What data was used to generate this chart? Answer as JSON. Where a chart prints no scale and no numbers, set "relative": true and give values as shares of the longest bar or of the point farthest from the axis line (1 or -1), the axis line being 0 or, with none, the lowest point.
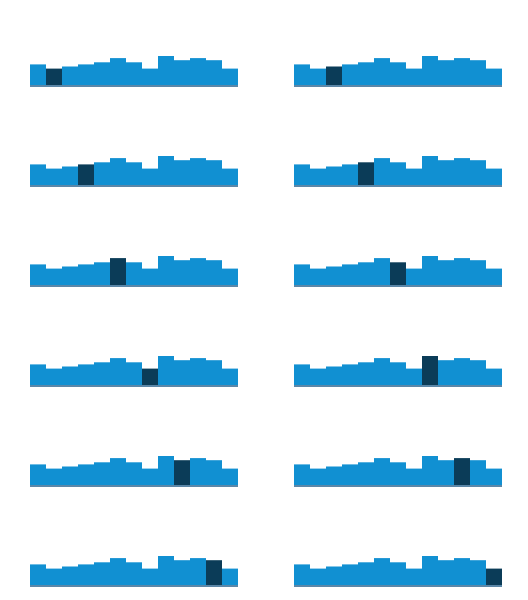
{
  "chart_data": [
    {
      "type": "bar",
      "relative": true,
      "categories": [
        null,
        null,
        null,
        null,
        null,
        null,
        null,
        null,
        null,
        null,
        null,
        null,
        null
      ],
      "values": [
        0.72,
        0.58,
        0.65,
        0.72,
        0.79,
        0.93,
        0.79,
        0.58,
        1,
        0.86,
        0.93,
        0.86,
        0.58
      ],
      "colors": [
        "#1190d2",
        "#0b3c58",
        "#1190d2",
        "#1190d2",
        "#1190d2",
        "#1190d2",
        "#1190d2",
        "#1190d2",
        "#1190d2",
        "#1190d2",
        "#1190d2",
        "#1190d2",
        "#1190d2"
      ]
    },
    {
      "type": "bar",
      "relative": true,
      "categories": [
        null,
        null,
        null,
        null,
        null,
        null,
        null,
        null,
        null,
        null,
        null,
        null,
        null
      ],
      "values": [
        0.72,
        0.58,
        0.65,
        0.72,
        0.79,
        0.93,
        0.79,
        0.58,
        1,
        0.86,
        0.93,
        0.86,
        0.58
      ],
      "colors": [
        "#1190d2",
        "#1190d2",
        "#0b3c58",
        "#1190d2",
        "#1190d2",
        "#1190d2",
        "#1190d2",
        "#1190d2",
        "#1190d2",
        "#1190d2",
        "#1190d2",
        "#1190d2",
        "#1190d2"
      ]
    },
    {
      "type": "bar",
      "relative": true,
      "categories": [
        null,
        null,
        null,
        null,
        null,
        null,
        null,
        null,
        null,
        null,
        null,
        null,
        null
      ],
      "values": [
        0.72,
        0.58,
        0.65,
        0.72,
        0.79,
        0.93,
        0.79,
        0.58,
        1,
        0.86,
        0.93,
        0.86,
        0.58
      ],
      "colors": [
        "#1190d2",
        "#1190d2",
        "#1190d2",
        "#0b3c58",
        "#1190d2",
        "#1190d2",
        "#1190d2",
        "#1190d2",
        "#1190d2",
        "#1190d2",
        "#1190d2",
        "#1190d2",
        "#1190d2"
      ]
    },
    {
      "type": "bar",
      "relative": true,
      "categories": [
        null,
        null,
        null,
        null,
        null,
        null,
        null,
        null,
        null,
        null,
        null,
        null,
        null
      ],
      "values": [
        0.72,
        0.58,
        0.65,
        0.72,
        0.79,
        0.93,
        0.79,
        0.58,
        1,
        0.86,
        0.93,
        0.86,
        0.58
      ],
      "colors": [
        "#1190d2",
        "#1190d2",
        "#1190d2",
        "#1190d2",
        "#0b3c58",
        "#1190d2",
        "#1190d2",
        "#1190d2",
        "#1190d2",
        "#1190d2",
        "#1190d2",
        "#1190d2",
        "#1190d2"
      ]
    },
    {
      "type": "bar",
      "relative": true,
      "categories": [
        null,
        null,
        null,
        null,
        null,
        null,
        null,
        null,
        null,
        null,
        null,
        null,
        null
      ],
      "values": [
        0.72,
        0.58,
        0.65,
        0.72,
        0.79,
        0.93,
        0.79,
        0.58,
        1,
        0.86,
        0.93,
        0.86,
        0.58
      ],
      "colors": [
        "#1190d2",
        "#1190d2",
        "#1190d2",
        "#1190d2",
        "#1190d2",
        "#0b3c58",
        "#1190d2",
        "#1190d2",
        "#1190d2",
        "#1190d2",
        "#1190d2",
        "#1190d2",
        "#1190d2"
      ]
    },
    {
      "type": "bar",
      "relative": true,
      "categories": [
        null,
        null,
        null,
        null,
        null,
        null,
        null,
        null,
        null,
        null,
        null,
        null,
        null
      ],
      "values": [
        0.72,
        0.58,
        0.65,
        0.72,
        0.79,
        0.93,
        0.79,
        0.58,
        1,
        0.86,
        0.93,
        0.86,
        0.58
      ],
      "colors": [
        "#1190d2",
        "#1190d2",
        "#1190d2",
        "#1190d2",
        "#1190d2",
        "#1190d2",
        "#0b3c58",
        "#1190d2",
        "#1190d2",
        "#1190d2",
        "#1190d2",
        "#1190d2",
        "#1190d2"
      ]
    },
    {
      "type": "bar",
      "relative": true,
      "categories": [
        null,
        null,
        null,
        null,
        null,
        null,
        null,
        null,
        null,
        null,
        null,
        null,
        null
      ],
      "values": [
        0.72,
        0.58,
        0.65,
        0.72,
        0.79,
        0.93,
        0.79,
        0.58,
        1,
        0.86,
        0.93,
        0.86,
        0.58
      ],
      "colors": [
        "#1190d2",
        "#1190d2",
        "#1190d2",
        "#1190d2",
        "#1190d2",
        "#1190d2",
        "#1190d2",
        "#0b3c58",
        "#1190d2",
        "#1190d2",
        "#1190d2",
        "#1190d2",
        "#1190d2"
      ]
    },
    {
      "type": "bar",
      "relative": true,
      "categories": [
        null,
        null,
        null,
        null,
        null,
        null,
        null,
        null,
        null,
        null,
        null,
        null,
        null
      ],
      "values": [
        0.72,
        0.58,
        0.65,
        0.72,
        0.79,
        0.93,
        0.79,
        0.58,
        1,
        0.86,
        0.93,
        0.86,
        0.58
      ],
      "colors": [
        "#1190d2",
        "#1190d2",
        "#1190d2",
        "#1190d2",
        "#1190d2",
        "#1190d2",
        "#1190d2",
        "#1190d2",
        "#0b3c58",
        "#1190d2",
        "#1190d2",
        "#1190d2",
        "#1190d2"
      ]
    },
    {
      "type": "bar",
      "relative": true,
      "categories": [
        null,
        null,
        null,
        null,
        null,
        null,
        null,
        null,
        null,
        null,
        null,
        null,
        null
      ],
      "values": [
        0.72,
        0.58,
        0.65,
        0.72,
        0.79,
        0.93,
        0.79,
        0.58,
        1,
        0.86,
        0.93,
        0.86,
        0.58
      ],
      "colors": [
        "#1190d2",
        "#1190d2",
        "#1190d2",
        "#1190d2",
        "#1190d2",
        "#1190d2",
        "#1190d2",
        "#1190d2",
        "#1190d2",
        "#0b3c58",
        "#1190d2",
        "#1190d2",
        "#1190d2"
      ]
    },
    {
      "type": "bar",
      "relative": true,
      "categories": [
        null,
        null,
        null,
        null,
        null,
        null,
        null,
        null,
        null,
        null,
        null,
        null,
        null
      ],
      "values": [
        0.72,
        0.58,
        0.65,
        0.72,
        0.79,
        0.93,
        0.79,
        0.58,
        1,
        0.86,
        0.93,
        0.86,
        0.58
      ],
      "colors": [
        "#1190d2",
        "#1190d2",
        "#1190d2",
        "#1190d2",
        "#1190d2",
        "#1190d2",
        "#1190d2",
        "#1190d2",
        "#1190d2",
        "#1190d2",
        "#0b3c58",
        "#1190d2",
        "#1190d2"
      ]
    },
    {
      "type": "bar",
      "relative": true,
      "categories": [
        null,
        null,
        null,
        null,
        null,
        null,
        null,
        null,
        null,
        null,
        null,
        null,
        null
      ],
      "values": [
        0.72,
        0.58,
        0.65,
        0.72,
        0.79,
        0.93,
        0.79,
        0.58,
        1,
        0.86,
        0.93,
        0.86,
        0.58
      ],
      "colors": [
        "#1190d2",
        "#1190d2",
        "#1190d2",
        "#1190d2",
        "#1190d2",
        "#1190d2",
        "#1190d2",
        "#1190d2",
        "#1190d2",
        "#1190d2",
        "#1190d2",
        "#0b3c58",
        "#1190d2"
      ]
    },
    {
      "type": "bar",
      "relative": true,
      "categories": [
        null,
        null,
        null,
        null,
        null,
        null,
        null,
        null,
        null,
        null,
        null,
        null,
        null
      ],
      "values": [
        0.72,
        0.58,
        0.65,
        0.72,
        0.79,
        0.93,
        0.79,
        0.58,
        1,
        0.86,
        0.93,
        0.86,
        0.58
      ],
      "colors": [
        "#1190d2",
        "#1190d2",
        "#1190d2",
        "#1190d2",
        "#1190d2",
        "#1190d2",
        "#1190d2",
        "#1190d2",
        "#1190d2",
        "#1190d2",
        "#1190d2",
        "#1190d2",
        "#0b3c58"
      ]
    }
  ]
}
